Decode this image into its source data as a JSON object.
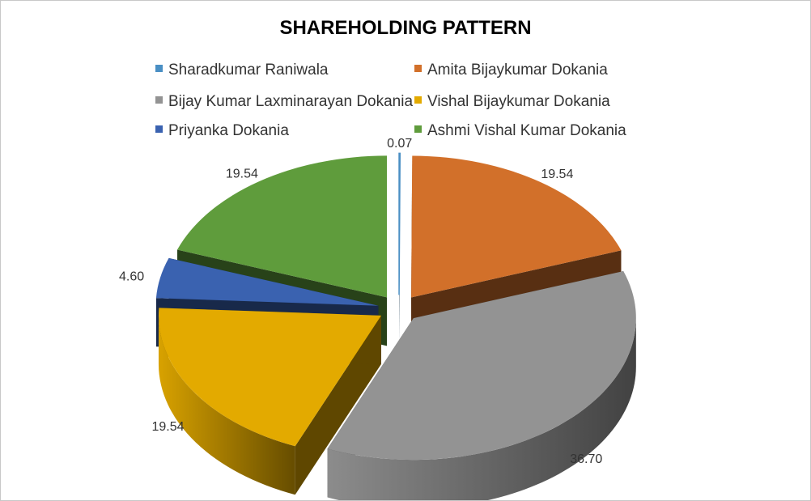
{
  "chart_data": {
    "type": "pie",
    "title": "SHAREHOLDING PATTERN",
    "legend_position": "top",
    "categories": [
      "Sharadkumar Raniwala",
      "Amita Bijaykumar Dokania",
      "Bijay Kumar Laxminarayan Dokania",
      "Vishal Bijaykumar Dokania",
      "Priyanka Dokania",
      "Ashmi Vishal Kumar Dokania"
    ],
    "values": [
      0.07,
      19.54,
      36.7,
      19.54,
      4.6,
      19.54
    ],
    "value_labels": [
      "0.07",
      "19.54",
      "36.70",
      "19.54",
      "4.60",
      "19.54"
    ],
    "colors": [
      "#4a8fc4",
      "#d2702a",
      "#939393",
      "#e3aa00",
      "#3a62b0",
      "#5f9c3c"
    ]
  }
}
